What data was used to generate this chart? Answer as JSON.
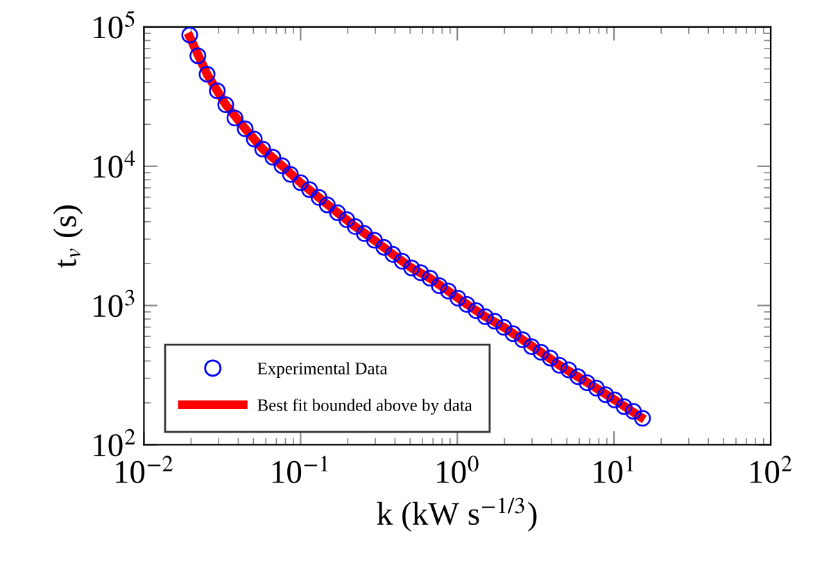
{
  "chart_data": {
    "type": "scatter",
    "xlabel": "k (kW s$^{−1/3}$)",
    "ylabel": "t$_{v}$ (s)",
    "log": "xy",
    "grid": false,
    "legend": "bottom left",
    "xlim": [
      0.01,
      100
    ],
    "ylim": [
      100,
      100000
    ],
    "xticks": [
      {
        "value": 0.01,
        "label": "10$^{−2}$"
      },
      {
        "value": 0.1,
        "label": "10$^{−1}$"
      },
      {
        "value": 1,
        "label": "10$^{0}$"
      },
      {
        "value": 10,
        "label": "10$^{1}$"
      },
      {
        "value": 100,
        "label": "10$^{2}$"
      }
    ],
    "yticks": [
      {
        "value": 100,
        "label": "10$^{2}$"
      },
      {
        "value": 1000,
        "label": "10$^{3}$"
      },
      {
        "value": 10000,
        "label": "10$^{4}$"
      },
      {
        "value": 100000,
        "label": "10$^{5}$"
      }
    ],
    "series": [
      {
        "name": "Experimental Data",
        "marker": "circle",
        "color": "#0000ff",
        "x": [
          0.0196,
          0.0221,
          0.0253,
          0.0294,
          0.0333,
          0.0381,
          0.0443,
          0.0506,
          0.0573,
          0.0665,
          0.0761,
          0.0861,
          0.1,
          0.114,
          0.131,
          0.148,
          0.172,
          0.197,
          0.223,
          0.255,
          0.296,
          0.34,
          0.388,
          0.445,
          0.511,
          0.584,
          0.67,
          0.767,
          0.877,
          1.01,
          1.15,
          1.32,
          1.51,
          1.73,
          1.98,
          2.27,
          2.61,
          2.98,
          3.42,
          3.92,
          4.48,
          5.14,
          5.89,
          6.73,
          7.72,
          8.85,
          10.1,
          11.6,
          13.3,
          15.2
        ],
        "values": [
          87700,
          62200,
          45900,
          34800,
          27700,
          22200,
          18600,
          15700,
          13300,
          11600,
          10100,
          8740,
          7620,
          6790,
          5970,
          5280,
          4640,
          4140,
          3690,
          3290,
          2940,
          2620,
          2330,
          2080,
          1860,
          1720,
          1570,
          1390,
          1270,
          1130,
          1020,
          918,
          832,
          771,
          698,
          627,
          568,
          507,
          462,
          419,
          373,
          345,
          308,
          279,
          255,
          229,
          210,
          188,
          174,
          155
        ]
      },
      {
        "name": "Best fit bounded above by data",
        "type": "line",
        "marker": "none",
        "line_style": "solid",
        "color": "#ff0000",
        "x": [
          0.0196,
          0.0253,
          0.0333,
          0.0443,
          0.0573,
          0.0761,
          0.1,
          0.131,
          0.172,
          0.223,
          0.296,
          0.388,
          0.511,
          0.67,
          0.877,
          1.15,
          1.51,
          1.98,
          2.61,
          3.42,
          4.48,
          5.89,
          7.72,
          10.1,
          14.8
        ],
        "values": [
          85000,
          45900,
          27700,
          18600,
          13300,
          10100,
          7620,
          5970,
          4640,
          3690,
          2940,
          2330,
          1860,
          1570,
          1270,
          1020,
          832,
          698,
          568,
          462,
          373,
          308,
          255,
          210,
          158
        ]
      }
    ]
  }
}
